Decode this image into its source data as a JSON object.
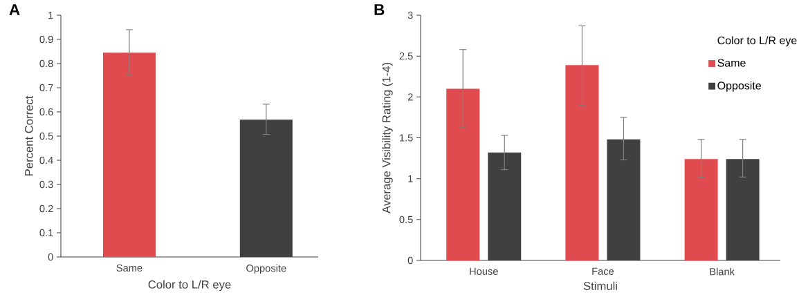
{
  "chart_data": [
    {
      "type": "bar",
      "title": "A",
      "xlabel": "Color to L/R eye",
      "ylabel": "Percent Correct",
      "categories": [
        "Same",
        "Opposite"
      ],
      "values": [
        0.845,
        0.568
      ],
      "colors": [
        "#e04b4f",
        "#404040"
      ],
      "errors": [
        [
          0.754,
          0.94
        ],
        [
          0.507,
          0.632
        ]
      ],
      "ylim": [
        0,
        1
      ],
      "yticks": [
        0,
        0.1,
        0.2,
        0.3,
        0.4,
        0.5,
        0.6,
        0.7,
        0.8,
        0.9,
        1
      ],
      "legend": false
    },
    {
      "type": "bar",
      "title": "B",
      "xlabel": "Stimuli",
      "ylabel": "Average Visibility Rating (1-4)",
      "legend_title": "Color to L/R eye",
      "categories": [
        "House",
        "Face",
        "Blank"
      ],
      "series": [
        {
          "name": "Same",
          "color": "#e04b4f",
          "values": [
            2.1,
            2.39,
            1.24
          ],
          "errors": [
            [
              1.63,
              2.58
            ],
            [
              1.9,
              2.87
            ],
            [
              1.02,
              1.48
            ]
          ]
        },
        {
          "name": "Opposite",
          "color": "#404040",
          "values": [
            1.32,
            1.48,
            1.24
          ],
          "errors": [
            [
              1.11,
              1.53
            ],
            [
              1.23,
              1.75
            ],
            [
              1.02,
              1.48
            ]
          ]
        }
      ],
      "ylim": [
        0,
        3
      ],
      "yticks": [
        0,
        0.5,
        1,
        1.5,
        2,
        2.5,
        3
      ],
      "legend": "top right"
    }
  ]
}
